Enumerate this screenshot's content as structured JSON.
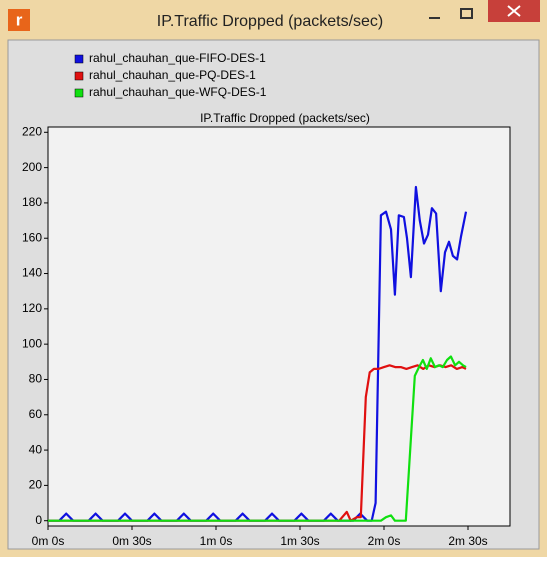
{
  "window": {
    "title": "IP.Traffic Dropped (packets/sec)",
    "icon": "r"
  },
  "chart_data": {
    "type": "line",
    "title": "IP.Traffic Dropped (packets/sec)",
    "xlim": [
      0,
      165
    ],
    "ylim": [
      -3,
      223
    ],
    "xticks": [
      {
        "value": 0,
        "label": "0m 0s"
      },
      {
        "value": 30,
        "label": "0m 30s"
      },
      {
        "value": 60,
        "label": "1m 0s"
      },
      {
        "value": 90,
        "label": "1m 30s"
      },
      {
        "value": 120,
        "label": "2m 0s"
      },
      {
        "value": 150,
        "label": "2m 30s"
      }
    ],
    "yticks": [
      0,
      20,
      40,
      60,
      80,
      100,
      120,
      140,
      160,
      180,
      200,
      220
    ],
    "grid": false,
    "series": [
      {
        "name": "rahul_chauhan_que-FIFO-DES-1",
        "color": "#1010e0",
        "x": [
          0,
          4,
          6.5,
          9,
          14.5,
          17,
          19.5,
          25,
          27.5,
          30,
          35.5,
          38,
          40.5,
          46,
          48.5,
          51,
          56.5,
          59,
          61.5,
          67,
          69.5,
          72,
          77.5,
          80,
          82.5,
          88,
          90.5,
          93,
          98.5,
          101,
          103.5,
          109,
          111.5,
          114,
          115.6,
          117,
          118.9,
          120.7,
          122.5,
          123.9,
          125.3,
          127.1,
          128.2,
          129.6,
          131.4,
          132.8,
          134.3,
          135.7,
          137.1,
          138.6,
          140.3,
          141.8,
          143.2,
          144.6,
          146.1,
          147.5,
          149.3
        ],
        "values": [
          0,
          0,
          4,
          0,
          0,
          4,
          0,
          0,
          4,
          0,
          0,
          4,
          0,
          0,
          4,
          0,
          0,
          4,
          0,
          0,
          4,
          0,
          0,
          4,
          0,
          0,
          4,
          0,
          0,
          4,
          0,
          0,
          4,
          0,
          0,
          10,
          173,
          175,
          165,
          128,
          173,
          172,
          160,
          138,
          189,
          170,
          157,
          162,
          177,
          174,
          130,
          152,
          158,
          150,
          148,
          161,
          175
        ]
      },
      {
        "name": "rahul_chauhan_que-PQ-DES-1",
        "color": "#e01010",
        "x": [
          0,
          104,
          106.7,
          108.1,
          110.3,
          111.7,
          113.5,
          114.9,
          116.4,
          118,
          120,
          122,
          124,
          126,
          128,
          130,
          132,
          134,
          136,
          138,
          140,
          142,
          144,
          146,
          148,
          149.3
        ],
        "values": [
          0,
          0,
          5,
          0,
          2,
          2,
          70,
          84,
          86,
          86,
          87,
          88,
          87,
          87,
          86,
          87,
          88,
          86,
          88,
          87,
          88,
          87,
          88,
          86,
          87,
          86
        ]
      },
      {
        "name": "rahul_chauhan_que-WFQ-DES-1",
        "color": "#10e010",
        "x": [
          0,
          115,
          118.9,
          120.7,
          122.5,
          123.9,
          127.8,
          131,
          132.5,
          133.9,
          135.3,
          136.7,
          138.2,
          139.6,
          141,
          142.5,
          143.9,
          145.4,
          146.8,
          148.2,
          149.3
        ],
        "values": [
          0,
          0,
          0,
          2,
          3,
          0,
          0,
          82,
          87,
          91,
          86,
          92,
          87,
          88,
          87,
          91,
          93,
          88,
          90,
          88,
          87
        ]
      }
    ]
  }
}
